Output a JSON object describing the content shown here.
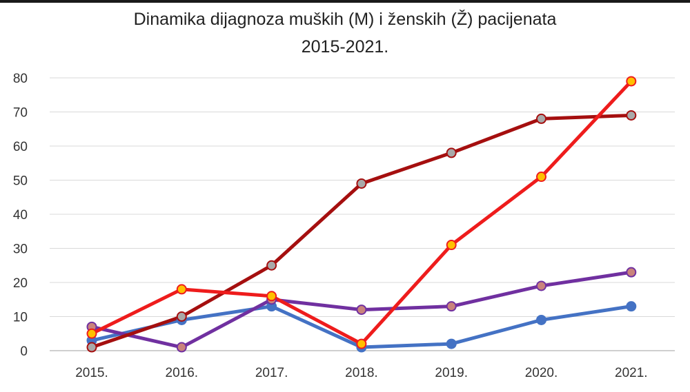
{
  "chart_data": {
    "type": "line",
    "title": "Dinamika dijagnoza muških (M) i ženskih (Ž) pacijenata",
    "subtitle": "2015-2021.",
    "xlabel": "",
    "ylabel": "",
    "categories": [
      "2015.",
      "2016.",
      "2017.",
      "2018.",
      "2019.",
      "2020.",
      "2021."
    ],
    "ylim": [
      0,
      80
    ],
    "yticks": [
      0,
      10,
      20,
      30,
      40,
      50,
      60,
      70,
      80
    ],
    "grid": true,
    "legend": "none",
    "series": [
      {
        "color": "#4472c4",
        "marker_fill": "#4472c4",
        "values": [
          3,
          9,
          13,
          1,
          2,
          9,
          13
        ]
      },
      {
        "color": "#7030a0",
        "marker_fill": "#c9837c",
        "values": [
          7,
          1,
          15,
          12,
          13,
          19,
          23
        ]
      },
      {
        "color": "#a50f0f",
        "marker_fill": "#a9a9a9",
        "values": [
          1,
          10,
          25,
          49,
          58,
          68,
          69
        ]
      },
      {
        "color": "#ee1c1c",
        "marker_fill": "#ffc000",
        "values": [
          5,
          18,
          16,
          2,
          31,
          51,
          79
        ]
      }
    ]
  }
}
